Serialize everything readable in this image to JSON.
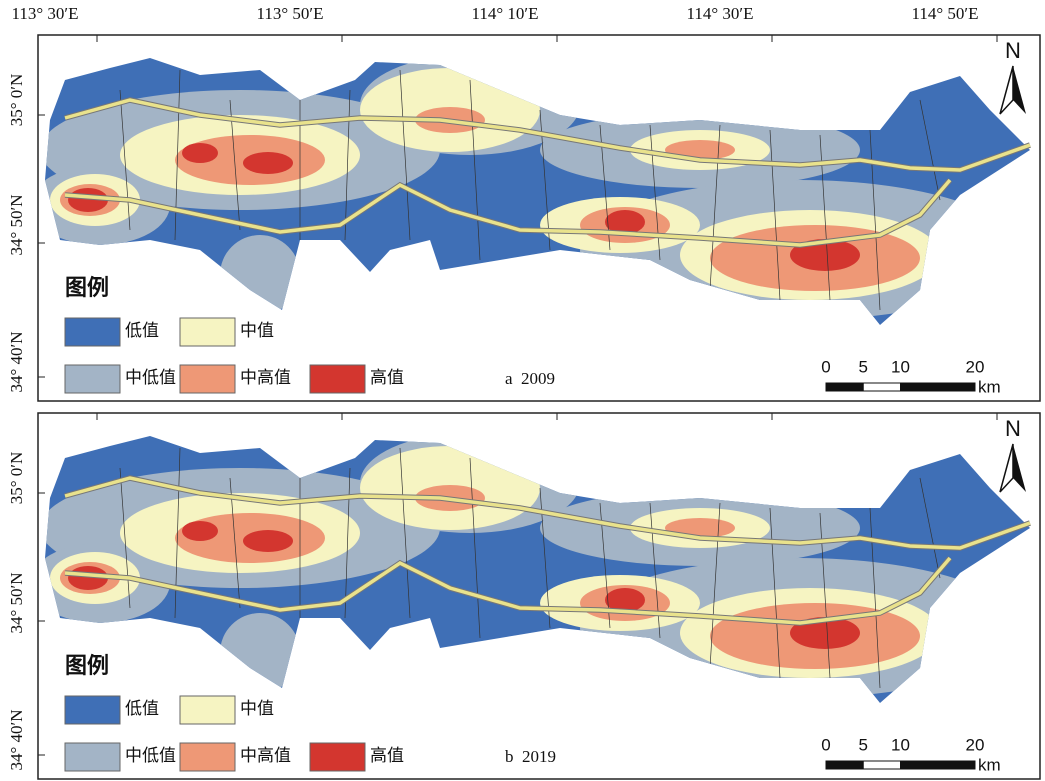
{
  "longitude_labels": [
    "113° 30′E",
    "113° 50′E",
    "114° 10′E",
    "114° 30′E",
    "114° 50′E"
  ],
  "panels": [
    {
      "label": "a  2009",
      "north": "N",
      "latitude_labels": [
        "35° 0′N",
        "34° 50′N",
        "34° 40′N"
      ],
      "legend": {
        "title": "图例",
        "items": [
          {
            "label": "低值",
            "color": "#3f6fb6"
          },
          {
            "label": "中值",
            "color": "#f6f4c2"
          },
          {
            "label": "中低值",
            "color": "#a3b4c6"
          },
          {
            "label": "中高值",
            "color": "#ee9876"
          },
          {
            "label": "高值",
            "color": "#d3362f"
          }
        ]
      },
      "scale": {
        "ticks": [
          0,
          5,
          10,
          20
        ],
        "unit": "km"
      }
    },
    {
      "label": "b  2019",
      "north": "N",
      "latitude_labels": [
        "35° 0′N",
        "34° 50′N",
        "34° 40′N"
      ],
      "legend": {
        "title": "图例",
        "items": [
          {
            "label": "低值",
            "color": "#3f6fb6"
          },
          {
            "label": "中值",
            "color": "#f6f4c2"
          },
          {
            "label": "中低值",
            "color": "#a3b4c6"
          },
          {
            "label": "中高值",
            "color": "#ee9876"
          },
          {
            "label": "高值",
            "color": "#d3362f"
          }
        ]
      },
      "scale": {
        "ticks": [
          0,
          5,
          10,
          20
        ],
        "unit": "km"
      }
    }
  ]
}
